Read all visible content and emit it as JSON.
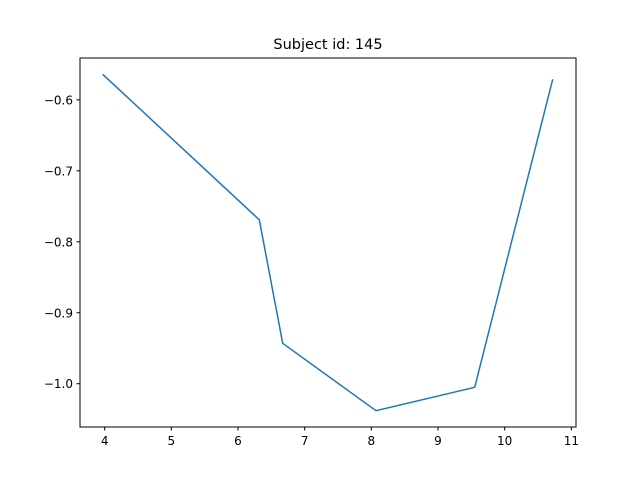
{
  "chart_data": {
    "type": "line",
    "title": "Subject id: 145",
    "xlabel": "",
    "ylabel": "",
    "grid": false,
    "legend": "none",
    "xlim": [
      3.63,
      11.07
    ],
    "ylim": [
      -1.061,
      -0.541
    ],
    "xticks": [
      4,
      5,
      6,
      7,
      8,
      9,
      10,
      11
    ],
    "xtick_labels": [
      "4",
      "5",
      "6",
      "7",
      "8",
      "9",
      "10",
      "11"
    ],
    "yticks": [
      -0.6,
      -0.7,
      -0.8,
      -0.9,
      -1.0
    ],
    "ytick_labels": [
      "−0.6",
      "−0.7",
      "−0.8",
      "−0.9",
      "−1.0"
    ],
    "series": [
      {
        "color": "#1f77b4",
        "x": [
          3.97,
          6.32,
          6.67,
          8.07,
          9.55,
          10.72
        ],
        "y": [
          -0.564,
          -0.769,
          -0.943,
          -1.038,
          -1.005,
          -0.571
        ]
      }
    ]
  }
}
